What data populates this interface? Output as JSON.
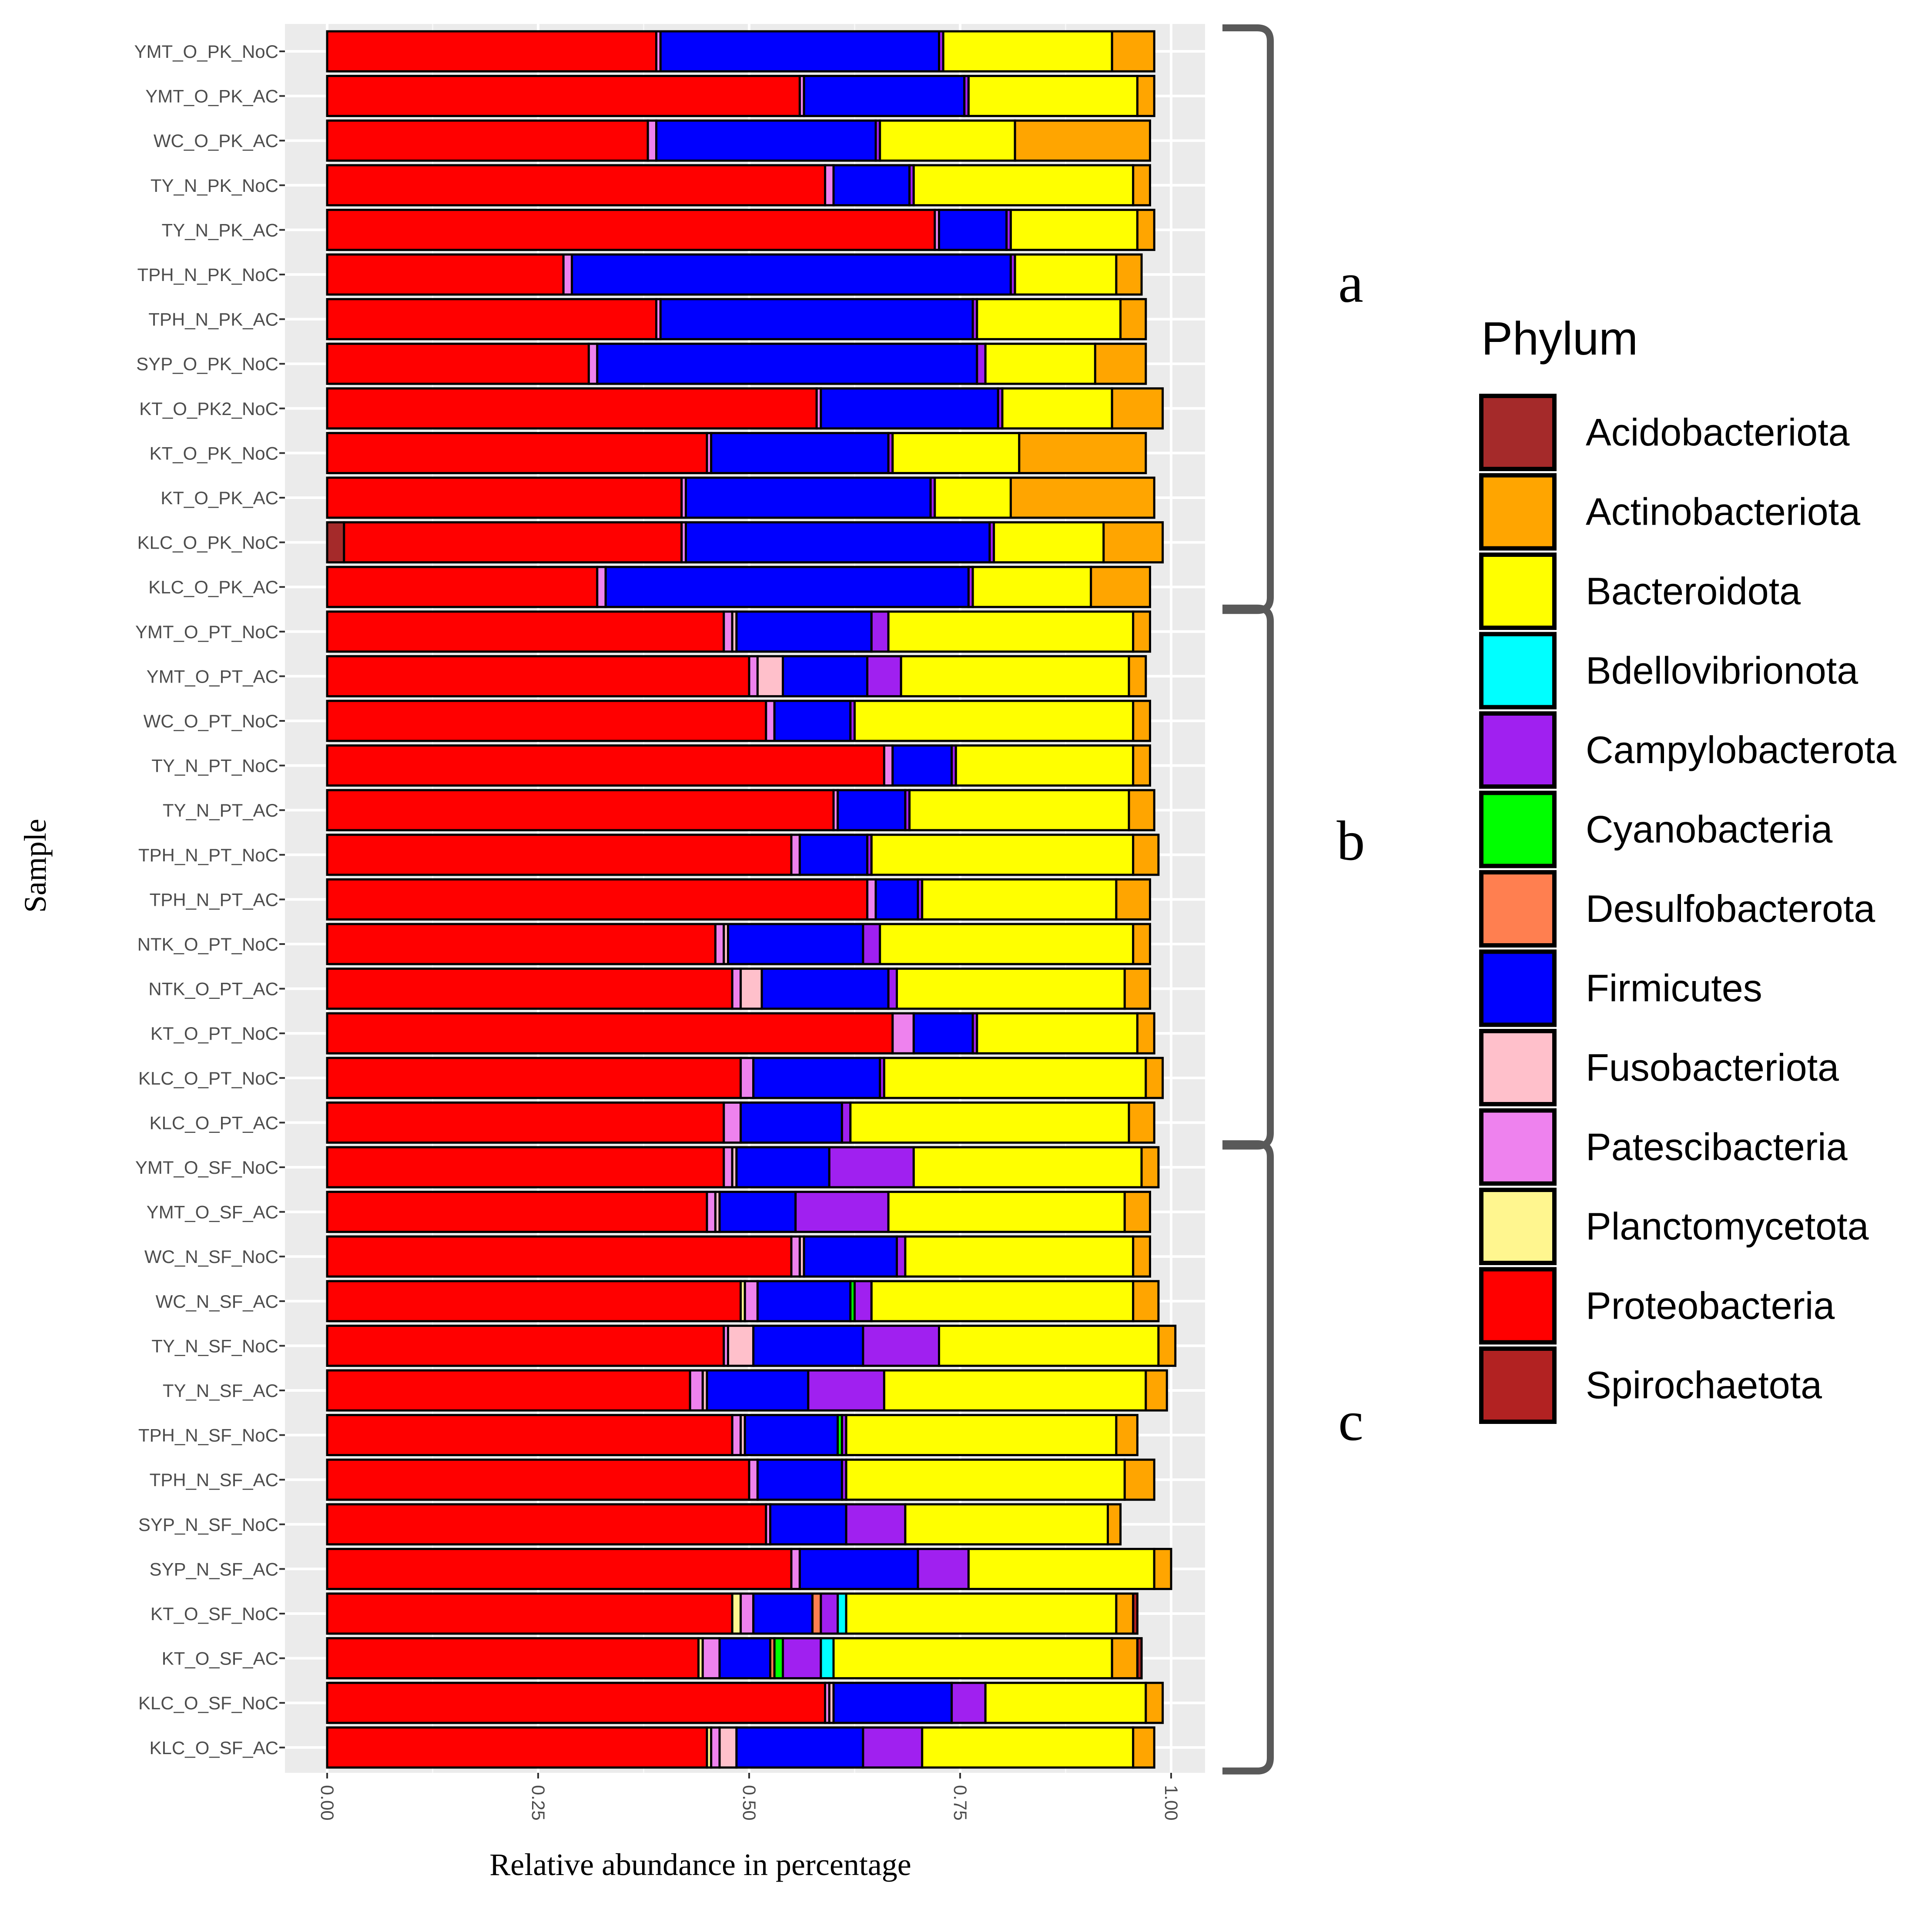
{
  "chart_data": {
    "type": "bar",
    "orientation": "horizontal",
    "stacked": true,
    "xlabel": "Relative abundance in percentage",
    "ylabel": "Sample",
    "xlim": [
      0,
      1
    ],
    "xticks": [
      "0.00",
      "0.25",
      "0.50",
      "0.75",
      "1.00"
    ],
    "grid": true,
    "legend_position": "right",
    "legend_title": "Phylum",
    "categories": [
      "YMT_O_PK_NoC",
      "YMT_O_PK_AC",
      "WC_O_PK_AC",
      "TY_N_PK_NoC",
      "TY_N_PK_AC",
      "TPH_N_PK_NoC",
      "TPH_N_PK_AC",
      "SYP_O_PK_NoC",
      "KT_O_PK2_NoC",
      "KT_O_PK_NoC",
      "KT_O_PK_AC",
      "KLC_O_PK_NoC",
      "KLC_O_PK_AC",
      "YMT_O_PT_NoC",
      "YMT_O_PT_AC",
      "WC_O_PT_NoC",
      "TY_N_PT_NoC",
      "TY_N_PT_AC",
      "TPH_N_PT_NoC",
      "TPH_N_PT_AC",
      "NTK_O_PT_NoC",
      "NTK_O_PT_AC",
      "KT_O_PT_NoC",
      "KLC_O_PT_NoC",
      "KLC_O_PT_AC",
      "YMT_O_SF_NoC",
      "YMT_O_SF_AC",
      "WC_N_SF_NoC",
      "WC_N_SF_AC",
      "TY_N_SF_NoC",
      "TY_N_SF_AC",
      "TPH_N_SF_NoC",
      "TPH_N_SF_AC",
      "SYP_N_SF_NoC",
      "SYP_N_SF_AC",
      "KT_O_SF_NoC",
      "KT_O_SF_AC",
      "KLC_O_SF_NoC",
      "KLC_O_SF_AC"
    ],
    "series": [
      {
        "name": "Acidobacteriota",
        "color": "#A52A2A",
        "values": [
          0,
          0,
          0,
          0,
          0,
          0,
          0,
          0,
          0,
          0,
          0,
          0.02,
          0,
          0,
          0,
          0,
          0,
          0,
          0,
          0,
          0,
          0,
          0,
          0,
          0,
          0,
          0,
          0,
          0,
          0,
          0,
          0,
          0,
          0,
          0,
          0,
          0,
          0,
          0
        ]
      },
      {
        "name": "Proteobacteria",
        "color": "#FF0000",
        "values": [
          0.39,
          0.56,
          0.38,
          0.59,
          0.72,
          0.28,
          0.39,
          0.31,
          0.58,
          0.45,
          0.42,
          0.4,
          0.32,
          0.47,
          0.5,
          0.52,
          0.66,
          0.6,
          0.55,
          0.64,
          0.46,
          0.48,
          0.67,
          0.49,
          0.47,
          0.47,
          0.45,
          0.55,
          0.49,
          0.47,
          0.43,
          0.48,
          0.5,
          0.52,
          0.55,
          0.48,
          0.44,
          0.59,
          0.45
        ]
      },
      {
        "name": "Planctomycetota",
        "color": "#FFF68F",
        "values": [
          0,
          0,
          0,
          0,
          0,
          0,
          0,
          0,
          0,
          0,
          0,
          0,
          0,
          0,
          0,
          0,
          0,
          0,
          0,
          0,
          0,
          0,
          0,
          0,
          0,
          0,
          0,
          0,
          0.005,
          0,
          0,
          0,
          0,
          0,
          0,
          0.01,
          0.005,
          0,
          0.005
        ]
      },
      {
        "name": "Patescibacteria",
        "color": "#EE82EE",
        "values": [
          0.005,
          0.005,
          0.01,
          0.01,
          0.005,
          0.01,
          0.005,
          0.01,
          0.005,
          0.005,
          0.005,
          0.005,
          0.01,
          0.01,
          0.01,
          0.01,
          0.01,
          0.005,
          0.01,
          0.01,
          0.01,
          0.01,
          0.025,
          0.015,
          0.02,
          0.01,
          0.01,
          0.01,
          0.015,
          0.005,
          0.015,
          0.01,
          0.01,
          0.005,
          0.01,
          0.015,
          0.02,
          0.005,
          0.01
        ]
      },
      {
        "name": "Fusobacteriota",
        "color": "#FFC0CB",
        "values": [
          0,
          0,
          0,
          0,
          0,
          0,
          0,
          0,
          0,
          0,
          0,
          0,
          0,
          0.005,
          0.03,
          0,
          0,
          0,
          0,
          0,
          0.005,
          0.025,
          0,
          0,
          0,
          0.005,
          0.005,
          0.005,
          0,
          0.03,
          0.005,
          0.005,
          0,
          0,
          0,
          0,
          0,
          0.005,
          0.02
        ]
      },
      {
        "name": "Firmicutes",
        "color": "#0000FF",
        "values": [
          0.33,
          0.19,
          0.26,
          0.09,
          0.08,
          0.52,
          0.37,
          0.45,
          0.21,
          0.21,
          0.29,
          0.36,
          0.43,
          0.16,
          0.1,
          0.09,
          0.07,
          0.08,
          0.08,
          0.05,
          0.16,
          0.15,
          0.07,
          0.15,
          0.12,
          0.11,
          0.09,
          0.11,
          0.11,
          0.13,
          0.12,
          0.11,
          0.1,
          0.09,
          0.14,
          0.07,
          0.06,
          0.14,
          0.15
        ]
      },
      {
        "name": "Desulfobacterota",
        "color": "#FF7F50",
        "values": [
          0,
          0,
          0,
          0,
          0,
          0,
          0,
          0,
          0,
          0,
          0,
          0,
          0,
          0,
          0,
          0,
          0,
          0,
          0,
          0,
          0,
          0,
          0,
          0,
          0,
          0,
          0,
          0,
          0,
          0,
          0,
          0,
          0,
          0,
          0,
          0.01,
          0.005,
          0,
          0
        ]
      },
      {
        "name": "Cyanobacteria",
        "color": "#00FF00",
        "values": [
          0,
          0,
          0,
          0,
          0,
          0,
          0,
          0,
          0,
          0,
          0,
          0,
          0,
          0,
          0,
          0,
          0,
          0,
          0,
          0,
          0,
          0,
          0,
          0,
          0,
          0,
          0,
          0,
          0.005,
          0,
          0,
          0.005,
          0,
          0,
          0,
          0,
          0.01,
          0,
          0
        ]
      },
      {
        "name": "Campylobacterota",
        "color": "#A020F0",
        "values": [
          0.005,
          0.005,
          0.005,
          0.005,
          0.005,
          0.005,
          0.005,
          0.01,
          0.005,
          0.005,
          0.005,
          0.005,
          0.005,
          0.02,
          0.04,
          0.005,
          0.005,
          0.005,
          0.005,
          0.005,
          0.02,
          0.01,
          0.005,
          0.005,
          0.01,
          0.1,
          0.11,
          0.01,
          0.02,
          0.09,
          0.09,
          0.005,
          0.005,
          0.07,
          0.06,
          0.02,
          0.045,
          0.04,
          0.07
        ]
      },
      {
        "name": "Bdellovibrionota",
        "color": "#00FFFF",
        "values": [
          0,
          0,
          0,
          0,
          0,
          0,
          0,
          0,
          0,
          0,
          0,
          0,
          0,
          0,
          0,
          0,
          0,
          0,
          0,
          0,
          0,
          0,
          0,
          0,
          0,
          0,
          0,
          0,
          0,
          0,
          0,
          0,
          0,
          0,
          0,
          0.01,
          0.015,
          0,
          0
        ]
      },
      {
        "name": "Bacteroidota",
        "color": "#FFFF00",
        "values": [
          0.2,
          0.2,
          0.16,
          0.26,
          0.15,
          0.12,
          0.17,
          0.13,
          0.13,
          0.15,
          0.09,
          0.13,
          0.14,
          0.29,
          0.27,
          0.33,
          0.21,
          0.26,
          0.31,
          0.23,
          0.3,
          0.27,
          0.19,
          0.31,
          0.33,
          0.27,
          0.28,
          0.27,
          0.31,
          0.26,
          0.31,
          0.32,
          0.33,
          0.24,
          0.22,
          0.32,
          0.33,
          0.19,
          0.25
        ]
      },
      {
        "name": "Actinobacteriota",
        "color": "#FFA500",
        "values": [
          0.05,
          0.02,
          0.16,
          0.02,
          0.02,
          0.03,
          0.03,
          0.06,
          0.06,
          0.15,
          0.17,
          0.07,
          0.07,
          0.02,
          0.02,
          0.02,
          0.02,
          0.03,
          0.03,
          0.04,
          0.02,
          0.03,
          0.02,
          0.02,
          0.03,
          0.02,
          0.03,
          0.02,
          0.03,
          0.02,
          0.025,
          0.025,
          0.035,
          0.015,
          0.02,
          0.02,
          0.03,
          0.02,
          0.025
        ]
      },
      {
        "name": "Spirochaetota",
        "color": "#B22222",
        "values": [
          0,
          0,
          0,
          0,
          0,
          0,
          0,
          0,
          0,
          0,
          0,
          0,
          0,
          0,
          0,
          0,
          0,
          0,
          0,
          0,
          0,
          0,
          0,
          0,
          0,
          0,
          0,
          0,
          0,
          0,
          0,
          0,
          0,
          0,
          0,
          0.005,
          0.005,
          0,
          0
        ]
      }
    ],
    "legend_order": [
      "Acidobacteriota",
      "Actinobacteriota",
      "Bacteroidota",
      "Bdellovibrionota",
      "Campylobacterota",
      "Cyanobacteria",
      "Desulfobacterota",
      "Firmicutes",
      "Fusobacteriota",
      "Patescibacteria",
      "Planctomycetota",
      "Proteobacteria",
      "Spirochaetota"
    ],
    "groups": [
      {
        "label": "a",
        "first": 0,
        "last": 12
      },
      {
        "label": "b",
        "first": 13,
        "last": 24
      },
      {
        "label": "c",
        "first": 25,
        "last": 38
      }
    ]
  }
}
